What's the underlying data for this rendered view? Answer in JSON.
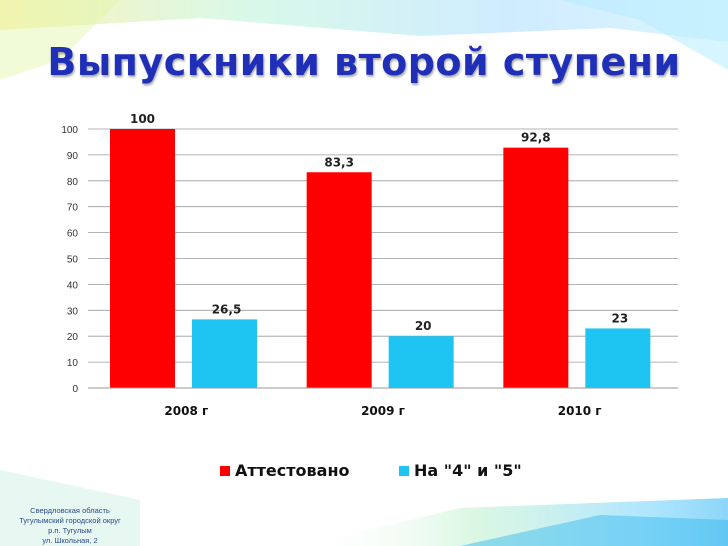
{
  "title": "Выпускники второй ступени",
  "footer": {
    "line1": "Свердловская область",
    "line2": "Тугулымский городской округ",
    "line3": "р.п. Тугулым",
    "line4": "ул. Школьная, 2"
  },
  "colors": {
    "title": "#1f2fb8",
    "series1": "#ff0000",
    "series2": "#1ec5f2"
  },
  "chart_data": {
    "type": "bar",
    "title": "",
    "xlabel": "",
    "ylabel": "",
    "categories": [
      "2008 г",
      "2009 г",
      "2010 г"
    ],
    "series": [
      {
        "name": "Аттестовано",
        "values": [
          100,
          83.3,
          92.8
        ],
        "labels": [
          "100",
          "83,3",
          "92,8"
        ],
        "color": "#ff0000"
      },
      {
        "name": "На \"4\" и \"5\"",
        "values": [
          26.5,
          20,
          23
        ],
        "labels": [
          "26,5",
          "20",
          "23"
        ],
        "color": "#1ec5f2"
      }
    ],
    "ylim": [
      0,
      100
    ],
    "yticks": [
      0,
      10,
      20,
      30,
      40,
      50,
      60,
      70,
      80,
      90,
      100
    ],
    "grid": true,
    "legend": "bottom"
  }
}
